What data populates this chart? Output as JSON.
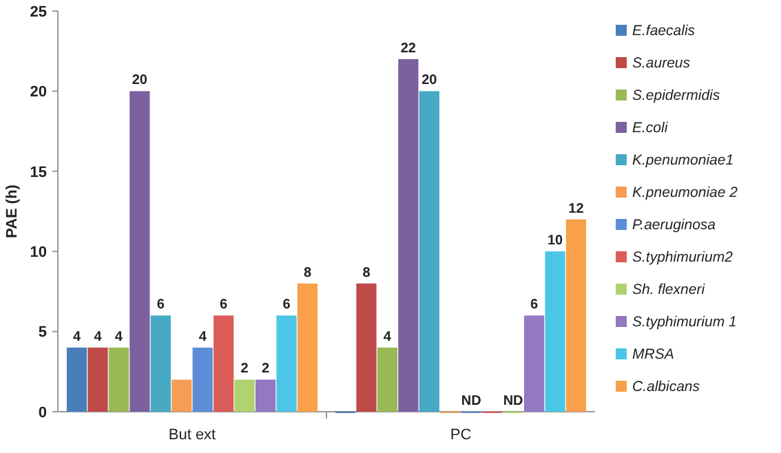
{
  "chart_data": {
    "type": "bar",
    "ylabel": "PAE (h)",
    "categories": [
      "But ext",
      "PC"
    ],
    "ylim": [
      0,
      25
    ],
    "yticks": [
      0,
      5,
      10,
      15,
      20,
      25
    ],
    "legend": "right",
    "series": [
      {
        "name": "E.faecalis",
        "color": "#4a7ebb",
        "values": [
          4,
          0
        ],
        "value_labels": [
          "4",
          null
        ]
      },
      {
        "name": "S.aureus",
        "color": "#be4b48",
        "values": [
          4,
          8
        ],
        "value_labels": [
          "4",
          "8"
        ]
      },
      {
        "name": "S.epidermidis",
        "color": "#98b954",
        "values": [
          4,
          4
        ],
        "value_labels": [
          "4",
          "4"
        ]
      },
      {
        "name": "E.coli",
        "color": "#7d60a0",
        "values": [
          20,
          22
        ],
        "value_labels": [
          "20",
          "22"
        ]
      },
      {
        "name": "K.penumoniae1",
        "color": "#46aac5",
        "values": [
          6,
          20
        ],
        "value_labels": [
          "6",
          "20"
        ]
      },
      {
        "name": "K.pneumoniae 2",
        "color": "#f59d56",
        "values": [
          2,
          0
        ],
        "value_labels": [
          null,
          null
        ]
      },
      {
        "name": "P.aeruginosa",
        "color": "#5b8ed6",
        "values": [
          4,
          0
        ],
        "value_labels": [
          "4",
          "ND"
        ]
      },
      {
        "name": "S.typhimurium2",
        "color": "#dc5c58",
        "values": [
          6,
          0
        ],
        "value_labels": [
          "6",
          null
        ]
      },
      {
        "name": "Sh. flexneri",
        "color": "#aed36f",
        "values": [
          2,
          0
        ],
        "value_labels": [
          "2",
          "ND"
        ]
      },
      {
        "name": "S.typhimurium 1",
        "color": "#9478c0",
        "values": [
          2,
          6
        ],
        "value_labels": [
          "2",
          "6"
        ]
      },
      {
        "name": "MRSA",
        "color": "#4bc6e6",
        "values": [
          6,
          10
        ],
        "value_labels": [
          "6",
          "10"
        ]
      },
      {
        "name": "C.albicans",
        "color": "#f9a04a",
        "values": [
          8,
          12
        ],
        "value_labels": [
          "8",
          "12"
        ]
      }
    ]
  }
}
